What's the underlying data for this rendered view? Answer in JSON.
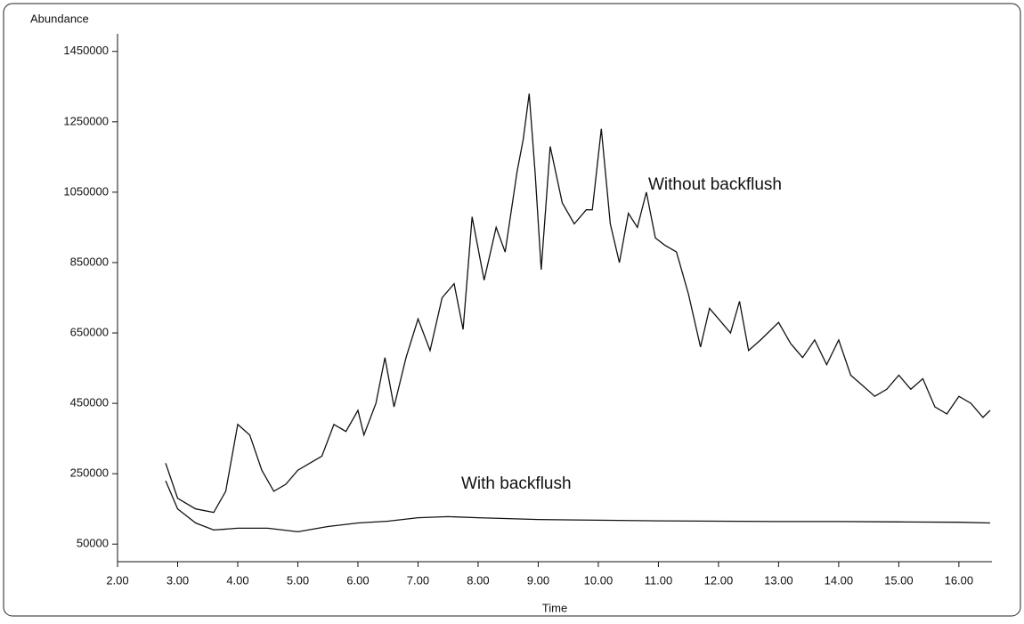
{
  "chart_data": {
    "type": "line",
    "ylabel": "Abundance",
    "xlabel": "Time",
    "xlim": [
      2,
      16.55
    ],
    "ylim": [
      0,
      1500000
    ],
    "xticks": [
      {
        "value": 2,
        "label": "2.00"
      },
      {
        "value": 3,
        "label": "3.00"
      },
      {
        "value": 4,
        "label": "4.00"
      },
      {
        "value": 5,
        "label": "5.00"
      },
      {
        "value": 6,
        "label": "6.00"
      },
      {
        "value": 7,
        "label": "7.00"
      },
      {
        "value": 8,
        "label": "8.00"
      },
      {
        "value": 9,
        "label": "9.00"
      },
      {
        "value": 10,
        "label": "10.00"
      },
      {
        "value": 11,
        "label": "11.00"
      },
      {
        "value": 12,
        "label": "12.00"
      },
      {
        "value": 13,
        "label": "13.00"
      },
      {
        "value": 14,
        "label": "14.00"
      },
      {
        "value": 15,
        "label": "15.00"
      },
      {
        "value": 16,
        "label": "16.00"
      }
    ],
    "yticks": [
      50000,
      250000,
      450000,
      650000,
      850000,
      1050000,
      1250000,
      1450000
    ],
    "annotations": [
      "Without backflush",
      "With backflush"
    ],
    "series": [
      {
        "name": "Without backflush",
        "color": "#111111",
        "x": [
          2.8,
          3.0,
          3.3,
          3.6,
          3.8,
          4.0,
          4.2,
          4.4,
          4.6,
          4.8,
          5.0,
          5.2,
          5.4,
          5.6,
          5.8,
          6.0,
          6.1,
          6.3,
          6.45,
          6.6,
          6.8,
          7.0,
          7.2,
          7.4,
          7.6,
          7.75,
          7.9,
          8.1,
          8.3,
          8.45,
          8.65,
          8.75,
          8.85,
          8.95,
          9.05,
          9.2,
          9.4,
          9.6,
          9.8,
          9.9,
          10.05,
          10.2,
          10.35,
          10.5,
          10.65,
          10.8,
          10.95,
          11.1,
          11.3,
          11.5,
          11.7,
          11.85,
          12.0,
          12.2,
          12.35,
          12.5,
          12.7,
          13.0,
          13.2,
          13.4,
          13.6,
          13.8,
          14.0,
          14.2,
          14.4,
          14.6,
          14.8,
          15.0,
          15.2,
          15.4,
          15.6,
          15.8,
          16.0,
          16.2,
          16.4,
          16.52
        ],
        "values": [
          280000,
          180000,
          150000,
          140000,
          200000,
          390000,
          360000,
          260000,
          200000,
          220000,
          260000,
          280000,
          300000,
          390000,
          370000,
          430000,
          360000,
          450000,
          580000,
          440000,
          580000,
          690000,
          600000,
          750000,
          790000,
          660000,
          980000,
          800000,
          950000,
          880000,
          1110000,
          1200000,
          1330000,
          1100000,
          830000,
          1180000,
          1020000,
          960000,
          1000000,
          1000000,
          1230000,
          960000,
          850000,
          990000,
          950000,
          1050000,
          920000,
          900000,
          880000,
          760000,
          610000,
          720000,
          690000,
          650000,
          740000,
          600000,
          630000,
          680000,
          620000,
          580000,
          630000,
          560000,
          630000,
          530000,
          500000,
          470000,
          490000,
          530000,
          490000,
          520000,
          440000,
          420000,
          470000,
          450000,
          410000,
          430000
        ]
      },
      {
        "name": "With backflush",
        "color": "#111111",
        "x": [
          2.8,
          3.0,
          3.3,
          3.6,
          4.0,
          4.5,
          5.0,
          5.5,
          6.0,
          6.5,
          7.0,
          7.5,
          8.0,
          9.0,
          10.0,
          11.0,
          12.0,
          13.0,
          14.0,
          15.0,
          16.0,
          16.52
        ],
        "values": [
          230000,
          150000,
          110000,
          90000,
          95000,
          95000,
          85000,
          100000,
          110000,
          115000,
          125000,
          128000,
          125000,
          120000,
          118000,
          116000,
          115000,
          114000,
          114000,
          113000,
          112000,
          110000
        ]
      }
    ]
  }
}
